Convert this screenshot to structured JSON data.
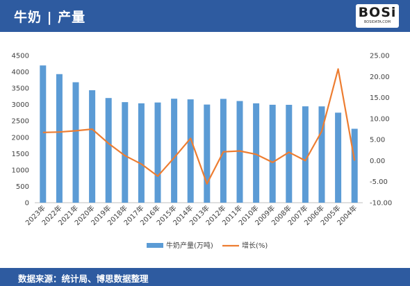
{
  "header": {
    "title": "牛奶 | 产量"
  },
  "logo": {
    "text": "BOSi",
    "subtext": "BOSIDATA.COM"
  },
  "footer": {
    "source": "数据来源：统计局、博思数据整理"
  },
  "colors": {
    "header_bg": "#2e5ba0",
    "bar": "#5b9bd5",
    "line": "#ed7d31"
  },
  "chart_data": {
    "type": "bar",
    "categories": [
      "2023年",
      "2022年",
      "2021年",
      "2020年",
      "2019年",
      "2018年",
      "2017年",
      "2016年",
      "2015年",
      "2014年",
      "2013年",
      "2012年",
      "2011年",
      "2010年",
      "2009年",
      "2008年",
      "2007年",
      "2006年",
      "2005年",
      "2004年"
    ],
    "series": [
      {
        "name": "牛奶产量(万吨)",
        "type": "bar",
        "axis": "left",
        "values": [
          4197,
          3932,
          3683,
          3440,
          3201,
          3075,
          3039,
          3064,
          3180,
          3160,
          3001,
          3175,
          3109,
          3039,
          2995,
          2993,
          2947,
          2945,
          2753,
          2261
        ]
      },
      {
        "name": "增长(%)",
        "type": "line",
        "axis": "right",
        "values": [
          6.7,
          6.8,
          7.1,
          7.5,
          4.1,
          1.2,
          -0.8,
          -3.7,
          0.7,
          5.3,
          -5.5,
          2.1,
          2.3,
          1.5,
          -0.4,
          2.0,
          0.0,
          7.0,
          21.8,
          0.0
        ]
      }
    ],
    "ylim": [
      0,
      4500
    ],
    "y_ticks": [
      "0",
      "500",
      "1000",
      "1500",
      "2000",
      "2500",
      "3000",
      "3500",
      "4000",
      "4500"
    ],
    "y2lim": [
      -10,
      25
    ],
    "y2_ticks": [
      "-10.00",
      "-5.00",
      "0.00",
      "5.00",
      "10.00",
      "15.00",
      "20.00",
      "25.00"
    ],
    "legend_position": "bottom",
    "grid": false
  }
}
